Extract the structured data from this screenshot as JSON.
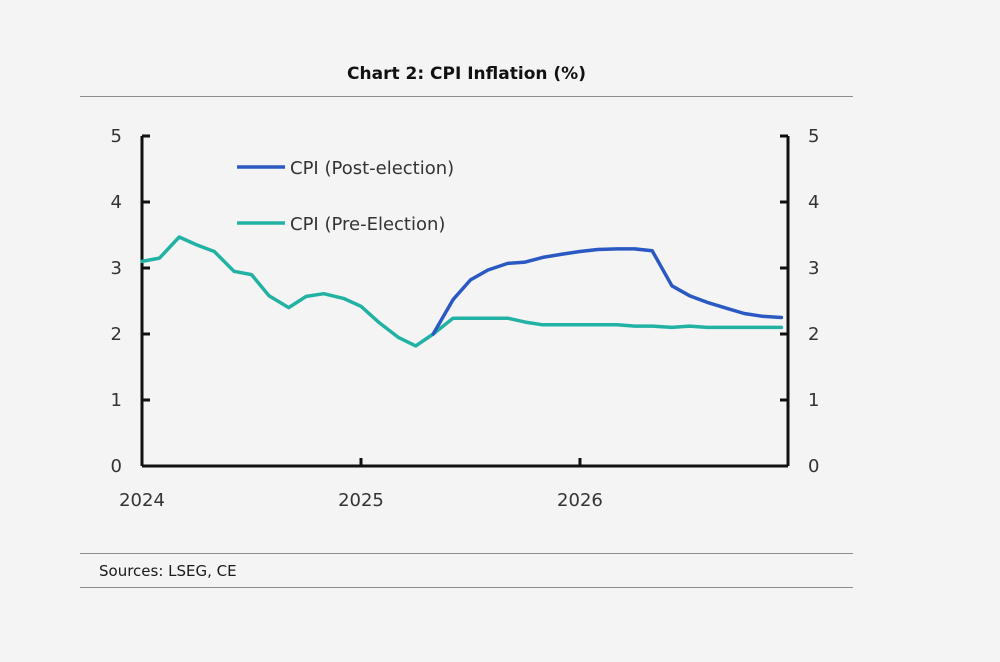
{
  "chart_data": {
    "type": "line",
    "title": "Chart 2: CPI Inflation (%)",
    "source": "Sources: LSEG, CE",
    "ylim": [
      0,
      5
    ],
    "yticks": [
      "0",
      "1",
      "2",
      "3",
      "4",
      "5"
    ],
    "yticks_right": [
      "0",
      "1",
      "2",
      "3",
      "4",
      "5"
    ],
    "xlim": [
      2024.0,
      2026.95
    ],
    "xticks": [
      {
        "value": 2024,
        "label": "2024"
      },
      {
        "value": 2025,
        "label": "2025"
      },
      {
        "value": 2026,
        "label": "2026"
      }
    ],
    "series": [
      {
        "name": "CPI (Post-election)",
        "color": "#2b59c3",
        "x": [
          2025.33,
          2025.42,
          2025.5,
          2025.58,
          2025.67,
          2025.75,
          2025.83,
          2025.92,
          2026.0,
          2026.08,
          2026.17,
          2026.25,
          2026.33,
          2026.42,
          2026.5,
          2026.58,
          2026.67,
          2026.75,
          2026.83,
          2026.92
        ],
        "y": [
          2.0,
          2.52,
          2.82,
          2.97,
          3.07,
          3.09,
          3.16,
          3.21,
          3.25,
          3.28,
          3.29,
          3.29,
          3.26,
          2.73,
          2.58,
          2.48,
          2.39,
          2.31,
          2.27,
          2.25
        ]
      },
      {
        "name": "CPI (Pre-Election)",
        "color": "#22b2a3",
        "x": [
          2024.0,
          2024.08,
          2024.17,
          2024.25,
          2024.33,
          2024.42,
          2024.5,
          2024.58,
          2024.67,
          2024.75,
          2024.83,
          2024.92,
          2025.0,
          2025.08,
          2025.17,
          2025.25,
          2025.33,
          2025.42,
          2025.5,
          2025.58,
          2025.67,
          2025.75,
          2025.83,
          2025.92,
          2026.0,
          2026.08,
          2026.17,
          2026.25,
          2026.33,
          2026.42,
          2026.5,
          2026.58,
          2026.67,
          2026.75,
          2026.83,
          2026.92
        ],
        "y": [
          3.1,
          3.15,
          3.47,
          3.35,
          3.25,
          2.95,
          2.9,
          2.58,
          2.4,
          2.57,
          2.61,
          2.54,
          2.42,
          2.18,
          1.95,
          1.82,
          2.0,
          2.24,
          2.24,
          2.24,
          2.24,
          2.18,
          2.14,
          2.14,
          2.14,
          2.14,
          2.14,
          2.12,
          2.12,
          2.1,
          2.12,
          2.1,
          2.1,
          2.1,
          2.1,
          2.1
        ]
      }
    ]
  }
}
